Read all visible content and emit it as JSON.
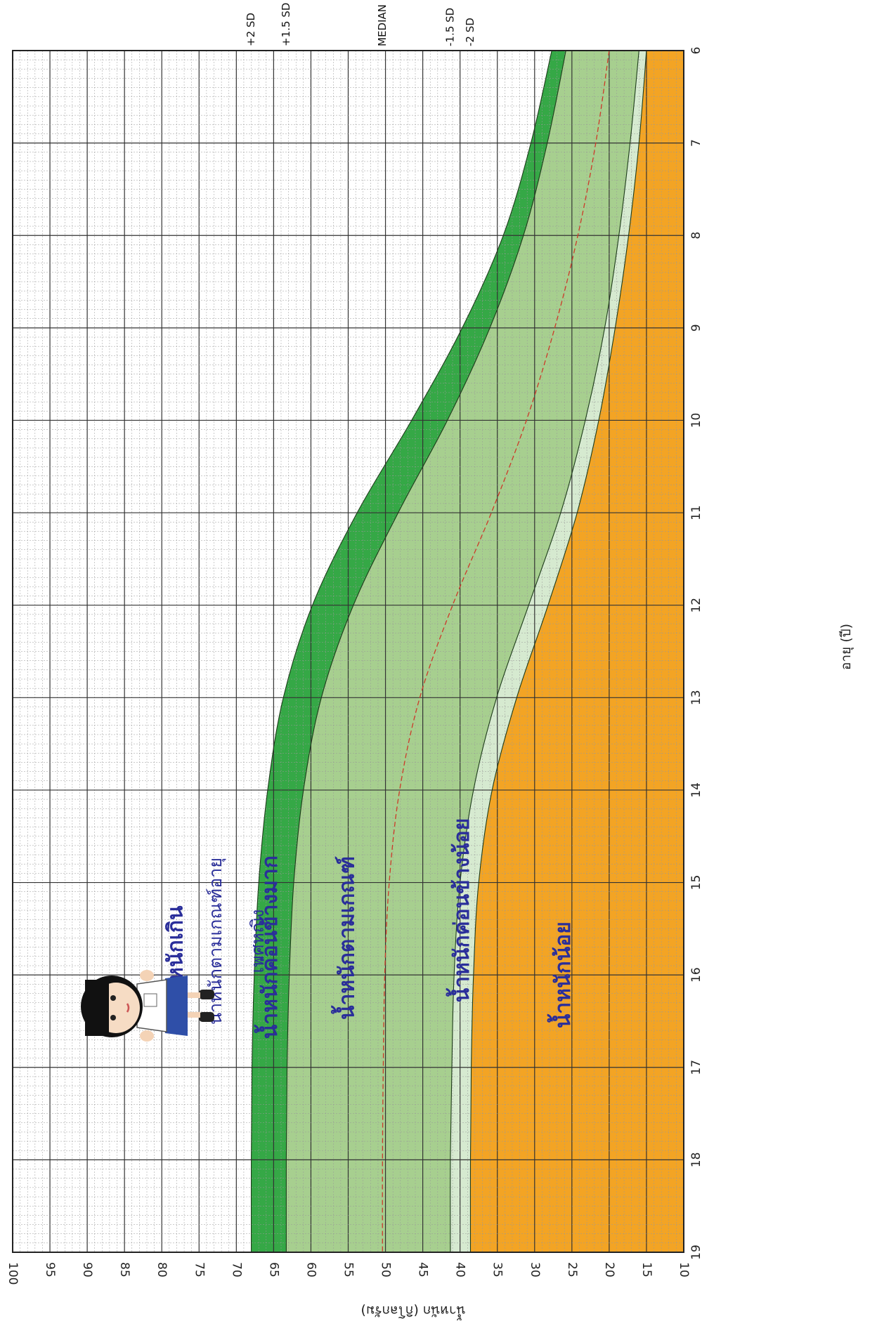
{
  "chart_data": {
    "type": "area",
    "orientation": "rotated-90-clockwise",
    "title": "น้ำหนักตามเกณฑ์อายุ",
    "subtitle": "เพศหญิง",
    "xlabel": "อายุ (ปี)",
    "ylabel": "น้ำหนัก (กิโลกรัม)",
    "xlim": [
      6,
      19
    ],
    "ylim": [
      10,
      100
    ],
    "x_ticks": [
      6,
      7,
      8,
      9,
      10,
      11,
      12,
      13,
      14,
      15,
      16,
      17,
      18,
      19
    ],
    "y_ticks": [
      10,
      15,
      20,
      25,
      30,
      35,
      40,
      45,
      50,
      55,
      60,
      65,
      70,
      75,
      80,
      85,
      90,
      95,
      100
    ],
    "grid": true,
    "x": [
      6,
      7,
      8,
      9,
      10,
      11,
      12,
      13,
      14,
      15,
      16,
      17,
      18,
      19
    ],
    "series": [
      {
        "name": "+2 SD",
        "values": [
          27.7,
          30.5,
          34.2,
          39.7,
          46.5,
          53.8,
          59.8,
          63.7,
          65.8,
          67.0,
          67.6,
          67.9,
          68.0,
          68.0
        ]
      },
      {
        "name": "+1.5 SD",
        "values": [
          25.8,
          28.3,
          31.5,
          36.0,
          41.7,
          48.3,
          54.3,
          58.6,
          61.0,
          62.3,
          62.9,
          63.2,
          63.3,
          63.3
        ]
      },
      {
        "name": "MEDIAN",
        "values": [
          20.0,
          21.8,
          24.2,
          27.3,
          31.1,
          35.8,
          41.0,
          45.4,
          48.1,
          49.5,
          50.1,
          50.3,
          50.4,
          50.4
        ]
      },
      {
        "name": "-1.5 SD",
        "values": [
          16.0,
          17.2,
          18.7,
          20.6,
          23.2,
          26.5,
          30.8,
          35.1,
          38.2,
          40.0,
          40.8,
          41.1,
          41.3,
          41.3
        ]
      },
      {
        "name": "-2 SD",
        "values": [
          15.0,
          16.0,
          17.4,
          19.2,
          21.4,
          24.3,
          28.2,
          32.4,
          35.7,
          37.5,
          38.2,
          38.5,
          38.6,
          38.6
        ]
      }
    ],
    "zone_labels": [
      "น้ำหนักเกิน",
      "น้ำหนักค่อนข้างมาก",
      "น้ำหนักตามเกณฑ์",
      "น้ำหนักค่อนข้างน้อย",
      "น้ำหนักน้อย"
    ],
    "colors": {
      "over": "#ffffff",
      "fairly_over": "#35a846",
      "normal": "#a7cf8f",
      "fairly_under": "#d6ead0",
      "under": "#f3a424",
      "median_line": "#cc3a2a",
      "major_grid": "#333333",
      "minor_grid": "#999999",
      "zone_text": "#2a2e9a"
    }
  }
}
